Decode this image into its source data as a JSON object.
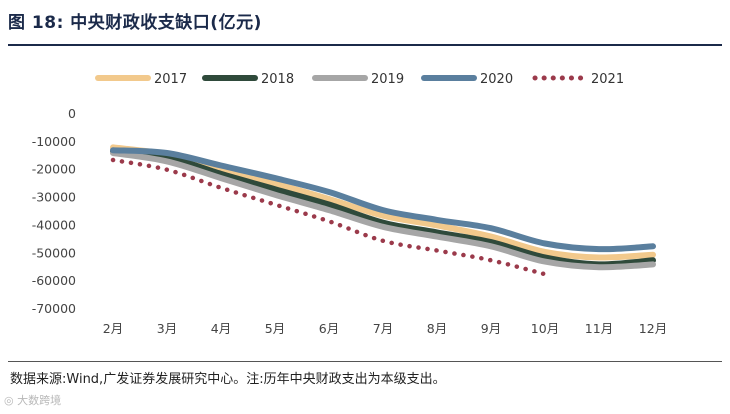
{
  "header": {
    "figure_label": "图 18:",
    "title": "中央财政收支缺口(亿元)"
  },
  "footer": {
    "source_label": "数据来源:",
    "source_text": "Wind,广发证券发展研究中心。",
    "note_label": "注:",
    "note_text": "历年中央财政支出为本级支出。",
    "watermark": "大数跨境"
  },
  "chart_data": {
    "type": "line",
    "title": "中央财政收支缺口(亿元)",
    "xlabel": "",
    "ylabel": "",
    "categories": [
      "2月",
      "3月",
      "4月",
      "5月",
      "6月",
      "7月",
      "8月",
      "9月",
      "10月",
      "11月",
      "12月"
    ],
    "ylim": [
      -70000,
      0
    ],
    "yticks": [
      0,
      -10000,
      -20000,
      -30000,
      -40000,
      -50000,
      -60000,
      -70000
    ],
    "grid": false,
    "legend_position": "top",
    "series": [
      {
        "name": "2017",
        "color": "#f2c98c",
        "style": "solid",
        "values": [
          -12000,
          -14500,
          -20000,
          -25000,
          -30500,
          -36500,
          -40000,
          -44000,
          -49500,
          -51500,
          -50500
        ]
      },
      {
        "name": "2018",
        "color": "#2f4a3b",
        "style": "solid",
        "values": [
          -13500,
          -15500,
          -21500,
          -27000,
          -32500,
          -39000,
          -42500,
          -46000,
          -51500,
          -54000,
          -52500
        ]
      },
      {
        "name": "2019",
        "color": "#a6a6a6",
        "style": "solid",
        "values": [
          -14000,
          -17000,
          -23000,
          -29000,
          -34500,
          -40500,
          -44000,
          -47500,
          -53000,
          -55000,
          -54000
        ]
      },
      {
        "name": "2020",
        "color": "#5a7f9e",
        "style": "solid",
        "values": [
          -13000,
          -14000,
          -18500,
          -23000,
          -28000,
          -34500,
          -38000,
          -41000,
          -46500,
          -48500,
          -47500
        ]
      },
      {
        "name": "2021",
        "color": "#9b3a4b",
        "style": "dotted",
        "values": [
          -16500,
          -20000,
          -26500,
          -32500,
          -38500,
          -45500,
          -49000,
          -52500,
          -57500,
          null,
          null
        ]
      }
    ]
  }
}
